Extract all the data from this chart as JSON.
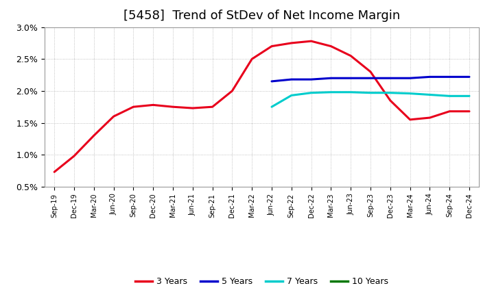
{
  "title": "[5458]  Trend of StDev of Net Income Margin",
  "ylim": [
    0.005,
    0.03
  ],
  "yticks": [
    0.005,
    0.01,
    0.015,
    0.02,
    0.025,
    0.03
  ],
  "ytick_labels": [
    "0.5%",
    "1.0%",
    "1.5%",
    "2.0%",
    "2.5%",
    "3.0%"
  ],
  "x_labels": [
    "Sep-19",
    "Dec-19",
    "Mar-20",
    "Jun-20",
    "Sep-20",
    "Dec-20",
    "Mar-21",
    "Jun-21",
    "Sep-21",
    "Dec-21",
    "Mar-22",
    "Jun-22",
    "Sep-22",
    "Dec-22",
    "Mar-23",
    "Jun-23",
    "Sep-23",
    "Dec-23",
    "Mar-24",
    "Jun-24",
    "Sep-24",
    "Dec-24"
  ],
  "series_3y": [
    0.0073,
    0.0098,
    0.013,
    0.016,
    0.0175,
    0.0178,
    0.0175,
    0.0173,
    0.0175,
    0.02,
    0.025,
    0.027,
    0.0275,
    0.0278,
    0.027,
    0.0255,
    0.023,
    0.0185,
    0.0155,
    0.0158,
    0.0168,
    0.0168
  ],
  "series_5y": [
    null,
    null,
    null,
    null,
    null,
    null,
    null,
    null,
    null,
    null,
    null,
    0.0215,
    0.0218,
    0.0218,
    0.022,
    0.022,
    0.022,
    0.022,
    0.022,
    0.0222,
    0.0222,
    0.0222
  ],
  "series_7y": [
    null,
    null,
    null,
    null,
    null,
    null,
    null,
    null,
    null,
    null,
    null,
    0.0175,
    0.0193,
    0.0197,
    0.0198,
    0.0198,
    0.0197,
    0.0197,
    0.0196,
    0.0194,
    0.0192,
    0.0192
  ],
  "series_10y": [
    null,
    null,
    null,
    null,
    null,
    null,
    null,
    null,
    null,
    null,
    null,
    null,
    null,
    null,
    null,
    null,
    null,
    null,
    null,
    null,
    null,
    null
  ],
  "color_3y": "#e8001c",
  "color_5y": "#0000cc",
  "color_7y": "#00cccc",
  "color_10y": "#007700",
  "linewidth": 2.2,
  "background_color": "#ffffff",
  "grid_color": "#b0b0b0",
  "title_fontsize": 13,
  "title_fontweight": "normal"
}
